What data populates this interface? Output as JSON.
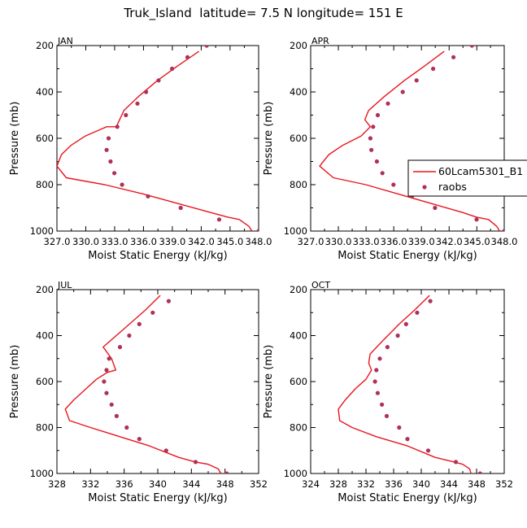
{
  "title": "Truk_Island  latitude= 7.5 N longitude= 151 E",
  "colors": {
    "model": "#e8161e",
    "obs": "#b0305a",
    "axis": "#000000"
  },
  "legend": {
    "placement": "right-of-APR-panel",
    "model_label": "60Lcam5301_B1",
    "obs_label": "raobs"
  },
  "chart_data": [
    {
      "type": "line",
      "panel": "JAN",
      "title": "JAN",
      "xlabel": "Moist Static Energy (kJ/kg)",
      "ylabel": "Pressure (mb)",
      "xlim": [
        327.03,
        348.0
      ],
      "ylim": [
        1000,
        200
      ],
      "xticks": [
        327.03,
        330.03,
        333.03,
        336.03,
        339.03,
        342.03,
        345.03,
        348.0
      ],
      "xtick_labels": [
        "327.0",
        "330.0",
        "333.0",
        "336.0",
        "339.0",
        "342.0",
        "345.0",
        "348.0"
      ],
      "yticks": [
        200,
        400,
        600,
        800,
        1000
      ],
      "ytick_labels": [
        "200",
        "400",
        "600",
        "800",
        "1000"
      ],
      "series": [
        {
          "name": "60Lcam5301_B1",
          "style": "line",
          "x": [
            347.3,
            347.0,
            346.0,
            344.8,
            343.0,
            339.5,
            336.0,
            332.0,
            328.0,
            327.03,
            327.5,
            328.5,
            330.0,
            332.2,
            333.2,
            334.0,
            335.5,
            337.5,
            339.5,
            341.8
          ],
          "y": [
            1000,
            980,
            950,
            940,
            920,
            880,
            840,
            800,
            770,
            720,
            670,
            630,
            590,
            550,
            550,
            480,
            420,
            350,
            290,
            225
          ]
        },
        {
          "name": "raobs",
          "style": "scatter",
          "x": [
            348.0,
            343.9,
            339.9,
            336.5,
            333.8,
            333.0,
            332.6,
            332.2,
            332.4,
            333.3,
            334.2,
            335.4,
            336.3,
            337.6,
            339.0,
            340.6,
            342.6
          ],
          "y": [
            1000,
            950,
            900,
            850,
            800,
            750,
            700,
            650,
            600,
            550,
            500,
            450,
            400,
            350,
            300,
            250,
            200
          ]
        }
      ]
    },
    {
      "type": "line",
      "panel": "APR",
      "title": "APR",
      "xlabel": "Moist Static Energy (kJ/kg)",
      "ylabel": "Pressure (mb)",
      "xlim": [
        327.03,
        348.0
      ],
      "ylim": [
        1000,
        200
      ],
      "xticks": [
        327.03,
        330.03,
        333.03,
        336.03,
        339.03,
        342.03,
        345.03,
        348.0
      ],
      "xtick_labels": [
        "327.0",
        "330.0",
        "333.0",
        "336.0",
        "339.0",
        "342.0",
        "345.0",
        "348.0"
      ],
      "yticks": [
        200,
        400,
        600,
        800,
        1000
      ],
      "ytick_labels": [
        "200",
        "400",
        "600",
        "800",
        "1000"
      ],
      "series": [
        {
          "name": "60Lcam5301_B1",
          "style": "line",
          "x": [
            347.5,
            347.2,
            346.3,
            345.0,
            343.5,
            340.0,
            336.5,
            333.0,
            329.5,
            328.0,
            329.0,
            330.5,
            332.5,
            333.5,
            332.9,
            333.3,
            335.0,
            337.2,
            339.3,
            341.5
          ],
          "y": [
            1000,
            980,
            950,
            940,
            920,
            880,
            840,
            800,
            770,
            720,
            670,
            630,
            590,
            550,
            520,
            480,
            420,
            350,
            290,
            225
          ]
        },
        {
          "name": "raobs",
          "style": "scatter",
          "x": [
            348.0,
            345.0,
            340.5,
            338.0,
            336.0,
            334.8,
            334.2,
            333.6,
            333.5,
            333.8,
            334.3,
            335.4,
            337.0,
            338.5,
            340.3,
            342.5,
            344.5
          ],
          "y": [
            1000,
            950,
            900,
            850,
            800,
            750,
            700,
            650,
            600,
            550,
            500,
            450,
            400,
            350,
            300,
            250,
            200
          ]
        }
      ]
    },
    {
      "type": "line",
      "panel": "JUL",
      "title": "JUL",
      "xlabel": "Moist Static Energy (kJ/kg)",
      "ylabel": "Pressure (mb)",
      "xlim": [
        328,
        352
      ],
      "ylim": [
        1000,
        200
      ],
      "xticks": [
        328,
        332,
        336,
        340,
        344,
        348,
        352
      ],
      "xtick_labels": [
        "328",
        "332",
        "336",
        "340",
        "344",
        "348",
        "352"
      ],
      "yticks": [
        200,
        400,
        600,
        800,
        1000
      ],
      "ytick_labels": [
        "200",
        "400",
        "600",
        "800",
        "1000"
      ],
      "series": [
        {
          "name": "60Lcam5301_B1",
          "style": "line",
          "x": [
            347.5,
            347.2,
            346.0,
            344.5,
            342.5,
            339.0,
            335.5,
            332.0,
            329.5,
            329.0,
            330.0,
            331.5,
            332.7,
            334.0,
            335.0,
            334.5,
            333.5,
            336.0,
            338.5,
            340.3
          ],
          "y": [
            1000,
            980,
            960,
            950,
            930,
            880,
            840,
            800,
            770,
            720,
            680,
            630,
            590,
            560,
            550,
            500,
            450,
            370,
            290,
            225
          ]
        },
        {
          "name": "raobs",
          "style": "scatter",
          "x": [
            348.2,
            344.5,
            341.0,
            337.8,
            336.3,
            335.1,
            334.5,
            333.9,
            333.6,
            333.9,
            334.2,
            335.5,
            336.6,
            337.8,
            339.4,
            341.3
          ],
          "y": [
            1000,
            950,
            900,
            850,
            800,
            750,
            700,
            650,
            600,
            550,
            500,
            450,
            400,
            350,
            300,
            250
          ]
        }
      ]
    },
    {
      "type": "line",
      "panel": "OCT",
      "title": "OCT",
      "xlabel": "Moist Static Energy (kJ/kg)",
      "ylabel": "Pressure (mb)",
      "xlim": [
        324,
        352
      ],
      "ylim": [
        1000,
        200
      ],
      "xticks": [
        324,
        328,
        332,
        336,
        340,
        344,
        348,
        352
      ],
      "xtick_labels": [
        "324",
        "328",
        "332",
        "336",
        "340",
        "344",
        "348",
        "352"
      ],
      "yticks": [
        200,
        400,
        600,
        800,
        1000
      ],
      "ytick_labels": [
        "200",
        "400",
        "600",
        "800",
        "1000"
      ],
      "series": [
        {
          "name": "60Lcam5301_B1",
          "style": "line",
          "x": [
            347.2,
            347.0,
            346.0,
            344.8,
            342.0,
            338.0,
            333.5,
            330.0,
            328.2,
            328.0,
            329.0,
            330.5,
            332.0,
            332.8,
            332.4,
            332.6,
            334.5,
            336.8,
            339.0,
            341.2
          ],
          "y": [
            1000,
            980,
            960,
            950,
            930,
            880,
            840,
            800,
            770,
            720,
            680,
            630,
            590,
            550,
            520,
            480,
            420,
            350,
            290,
            225
          ]
        },
        {
          "name": "raobs",
          "style": "scatter",
          "x": [
            348.5,
            345.0,
            341.0,
            338.0,
            336.8,
            335.0,
            334.3,
            333.7,
            333.3,
            333.5,
            334.0,
            335.1,
            336.6,
            337.8,
            339.4,
            341.3
          ],
          "y": [
            1000,
            950,
            900,
            850,
            800,
            750,
            700,
            650,
            600,
            550,
            500,
            450,
            400,
            350,
            300,
            250
          ]
        }
      ]
    }
  ]
}
